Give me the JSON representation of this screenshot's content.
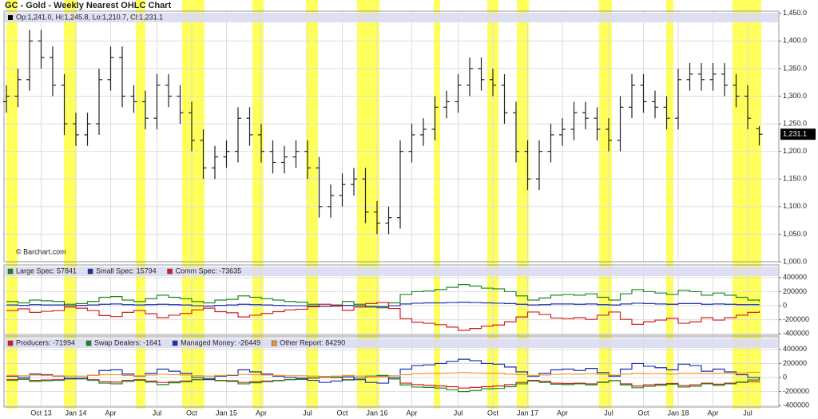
{
  "chart_data": [
    {
      "type": "ohlc",
      "title": "GC - Gold - Weekly Nearest OHLC Chart",
      "legend_text": "Op:1,241.0, Hi:1,245.8, Lo:1,210.7, Cl:1,231.1",
      "last_label": "1,231.1",
      "source": "© Barchart.com",
      "color": "#222222",
      "open": [
        1290,
        1300,
        1330,
        1400,
        1370,
        1320,
        1250,
        1230,
        1250,
        1330,
        1370,
        1300,
        1290,
        1260,
        1320,
        1300,
        1270,
        1220,
        1170,
        1190,
        1200,
        1260,
        1230,
        1200,
        1180,
        1190,
        1200,
        1170,
        1100,
        1120,
        1140,
        1150,
        1090,
        1070,
        1080,
        1200,
        1230,
        1240,
        1280,
        1290,
        1320,
        1350,
        1330,
        1320,
        1270,
        1200,
        1150,
        1200,
        1230,
        1240,
        1270,
        1260,
        1240,
        1220,
        1280,
        1320,
        1290,
        1280,
        1260,
        1330,
        1340,
        1330,
        1340,
        1320,
        1300,
        1241.0
      ],
      "high": [
        1320,
        1350,
        1420,
        1420,
        1390,
        1340,
        1270,
        1270,
        1350,
        1390,
        1390,
        1320,
        1310,
        1340,
        1340,
        1320,
        1290,
        1240,
        1210,
        1220,
        1280,
        1280,
        1250,
        1220,
        1210,
        1220,
        1220,
        1190,
        1140,
        1160,
        1170,
        1170,
        1110,
        1100,
        1220,
        1250,
        1260,
        1300,
        1310,
        1340,
        1370,
        1370,
        1350,
        1340,
        1290,
        1220,
        1220,
        1250,
        1260,
        1290,
        1290,
        1280,
        1260,
        1300,
        1340,
        1340,
        1310,
        1300,
        1350,
        1360,
        1360,
        1360,
        1360,
        1340,
        1320,
        1245.8
      ],
      "low": [
        1270,
        1280,
        1310,
        1350,
        1300,
        1230,
        1210,
        1210,
        1230,
        1310,
        1280,
        1270,
        1240,
        1240,
        1280,
        1250,
        1200,
        1150,
        1150,
        1170,
        1180,
        1210,
        1180,
        1160,
        1160,
        1170,
        1150,
        1080,
        1080,
        1100,
        1120,
        1070,
        1050,
        1050,
        1060,
        1180,
        1210,
        1220,
        1260,
        1270,
        1300,
        1310,
        1300,
        1250,
        1180,
        1130,
        1130,
        1180,
        1210,
        1220,
        1240,
        1220,
        1200,
        1200,
        1260,
        1270,
        1260,
        1240,
        1240,
        1310,
        1310,
        1310,
        1300,
        1280,
        1240,
        1210.7
      ],
      "close": [
        1300,
        1330,
        1400,
        1370,
        1320,
        1250,
        1230,
        1250,
        1330,
        1370,
        1300,
        1290,
        1260,
        1320,
        1300,
        1270,
        1220,
        1170,
        1190,
        1200,
        1260,
        1230,
        1200,
        1180,
        1190,
        1200,
        1170,
        1100,
        1120,
        1140,
        1150,
        1090,
        1070,
        1080,
        1200,
        1230,
        1240,
        1280,
        1290,
        1320,
        1350,
        1330,
        1320,
        1270,
        1200,
        1150,
        1200,
        1230,
        1240,
        1270,
        1260,
        1240,
        1220,
        1280,
        1320,
        1290,
        1280,
        1260,
        1330,
        1340,
        1330,
        1340,
        1320,
        1300,
        1260,
        1231.1
      ],
      "ylim": [
        1000,
        1454
      ],
      "grid": true,
      "yticks": [
        {
          "value": 1450,
          "label": "1,450.0"
        },
        {
          "value": 1400,
          "label": "1,400.0"
        },
        {
          "value": 1350,
          "label": "1,350.0"
        },
        {
          "value": 1300,
          "label": "1,300.0"
        },
        {
          "value": 1250,
          "label": "1,250.0"
        },
        {
          "value": 1200,
          "label": "1,200.0"
        },
        {
          "value": 1150,
          "label": "1,150.0"
        },
        {
          "value": 1100,
          "label": "1,100.0"
        },
        {
          "value": 1050,
          "label": "1,050.0"
        },
        {
          "value": 1000,
          "label": "1,000.0"
        }
      ]
    },
    {
      "type": "line",
      "ylim": [
        -420000,
        580000
      ],
      "yticks": [
        400000,
        200000,
        0,
        -200000,
        -400000
      ],
      "grid": true,
      "series": [
        {
          "name": "Large Spec: 57841",
          "color": "#1e8a1e",
          "values": [
            60000,
            40000,
            80000,
            70000,
            60000,
            20000,
            30000,
            60000,
            120000,
            130000,
            80000,
            60000,
            100000,
            150000,
            120000,
            100000,
            60000,
            40000,
            80000,
            90000,
            140000,
            120000,
            100000,
            80000,
            60000,
            50000,
            20000,
            -10000,
            10000,
            60000,
            20000,
            -20000,
            -30000,
            40000,
            160000,
            200000,
            210000,
            230000,
            260000,
            300000,
            280000,
            250000,
            240000,
            200000,
            140000,
            80000,
            110000,
            150000,
            160000,
            150000,
            170000,
            120000,
            80000,
            170000,
            230000,
            200000,
            180000,
            160000,
            220000,
            200000,
            150000,
            180000,
            150000,
            120000,
            80000,
            57841
          ]
        },
        {
          "name": "Small Spec: 15794",
          "color": "#1f2fb0",
          "values": [
            10000,
            5000,
            15000,
            10000,
            10000,
            0,
            5000,
            10000,
            20000,
            25000,
            15000,
            10000,
            15000,
            20000,
            15000,
            10000,
            0,
            -5000,
            5000,
            10000,
            20000,
            15000,
            10000,
            5000,
            0,
            0,
            -5000,
            -10000,
            -5000,
            5000,
            0,
            -10000,
            -15000,
            0,
            25000,
            35000,
            40000,
            40000,
            45000,
            50000,
            45000,
            40000,
            35000,
            30000,
            20000,
            10000,
            15000,
            25000,
            25000,
            20000,
            25000,
            15000,
            10000,
            25000,
            35000,
            30000,
            25000,
            20000,
            30000,
            30000,
            20000,
            25000,
            20000,
            15000,
            15000,
            15794
          ]
        },
        {
          "name": "Comm Spec: -73635",
          "color": "#d42020",
          "values": [
            -70000,
            -45000,
            -95000,
            -80000,
            -70000,
            -20000,
            -35000,
            -70000,
            -140000,
            -155000,
            -95000,
            -70000,
            -115000,
            -170000,
            -135000,
            -110000,
            -60000,
            -35000,
            -85000,
            -100000,
            -160000,
            -135000,
            -110000,
            -85000,
            -60000,
            -50000,
            -15000,
            20000,
            5000,
            -65000,
            -20000,
            30000,
            45000,
            -40000,
            -185000,
            -235000,
            -250000,
            -270000,
            -305000,
            -350000,
            -325000,
            -290000,
            -275000,
            -230000,
            -160000,
            -90000,
            -125000,
            -175000,
            -185000,
            -170000,
            -195000,
            -135000,
            -90000,
            -195000,
            -265000,
            -230000,
            -205000,
            -180000,
            -250000,
            -230000,
            -170000,
            -205000,
            -170000,
            -135000,
            -95000,
            -73635
          ]
        }
      ]
    },
    {
      "type": "line",
      "ylim": [
        -420000,
        580000
      ],
      "yticks": [
        400000,
        200000,
        0,
        -200000,
        -400000
      ],
      "grid": true,
      "categories": [
        null,
        null,
        null,
        "Oct 13",
        null,
        null,
        "Jan 14",
        null,
        null,
        "Apr",
        null,
        null,
        null,
        "Jul",
        null,
        null,
        "Oct",
        null,
        null,
        "Jan 15",
        null,
        null,
        "Apr",
        null,
        null,
        null,
        "Jul",
        null,
        null,
        "Oct",
        null,
        null,
        "Jan 16",
        null,
        null,
        "Apr",
        null,
        null,
        null,
        "Jul",
        null,
        null,
        "Oct",
        null,
        null,
        "Jan 17",
        null,
        null,
        "Apr",
        null,
        null,
        null,
        "Jul",
        null,
        null,
        "Oct",
        null,
        null,
        "Jan 18",
        null,
        null,
        "Apr",
        null,
        null,
        "Jul",
        null
      ],
      "series": [
        {
          "name": "Producers: -71994",
          "color": "#d42020",
          "values": [
            -30000,
            -20000,
            -40000,
            -35000,
            -30000,
            -10000,
            -15000,
            -30000,
            -60000,
            -65000,
            -40000,
            -30000,
            -50000,
            -70000,
            -60000,
            -50000,
            -30000,
            -20000,
            -40000,
            -45000,
            -70000,
            -60000,
            -50000,
            -40000,
            -30000,
            -25000,
            -10000,
            5000,
            0,
            -30000,
            -10000,
            10000,
            15000,
            -20000,
            -80000,
            -100000,
            -110000,
            -120000,
            -130000,
            -150000,
            -140000,
            -130000,
            -120000,
            -100000,
            -70000,
            -40000,
            -55000,
            -80000,
            -85000,
            -80000,
            -90000,
            -65000,
            -45000,
            -90000,
            -120000,
            -105000,
            -95000,
            -85000,
            -115000,
            -105000,
            -80000,
            -95000,
            -80000,
            -70000,
            -60000,
            -71994
          ]
        },
        {
          "name": "Swap Dealers: -1641",
          "color": "#1e8a1e",
          "values": [
            -40000,
            -25000,
            -55000,
            -45000,
            -40000,
            -10000,
            -20000,
            -40000,
            -80000,
            -90000,
            -55000,
            -40000,
            -65000,
            -100000,
            -75000,
            -60000,
            -30000,
            -15000,
            -45000,
            -55000,
            -90000,
            -75000,
            -60000,
            -45000,
            -30000,
            -25000,
            -5000,
            15000,
            5000,
            -35000,
            -10000,
            20000,
            30000,
            -20000,
            -105000,
            -135000,
            -140000,
            -150000,
            -175000,
            -200000,
            -185000,
            -160000,
            -155000,
            -130000,
            -90000,
            -50000,
            -70000,
            -95000,
            -100000,
            -90000,
            -105000,
            -70000,
            -45000,
            -105000,
            -145000,
            -125000,
            -110000,
            -95000,
            -135000,
            -125000,
            -90000,
            -110000,
            -90000,
            -65000,
            -35000,
            -1641
          ]
        },
        {
          "name": "Managed Money: -26449",
          "color": "#1f2fb0",
          "values": [
            20000,
            0,
            50000,
            40000,
            20000,
            -20000,
            -10000,
            30000,
            100000,
            110000,
            50000,
            20000,
            60000,
            120000,
            90000,
            60000,
            0,
            -30000,
            20000,
            30000,
            110000,
            80000,
            50000,
            20000,
            0,
            -10000,
            -40000,
            -70000,
            -50000,
            10000,
            -30000,
            -70000,
            -80000,
            0,
            120000,
            170000,
            180000,
            200000,
            230000,
            260000,
            240000,
            200000,
            190000,
            150000,
            80000,
            20000,
            60000,
            110000,
            120000,
            100000,
            130000,
            70000,
            20000,
            120000,
            200000,
            160000,
            140000,
            110000,
            190000,
            170000,
            90000,
            120000,
            80000,
            40000,
            0,
            -26449
          ]
        },
        {
          "name": "Other Report: 84290",
          "color": "#f0962a",
          "values": [
            30000,
            25000,
            35000,
            30000,
            25000,
            20000,
            20000,
            30000,
            40000,
            40000,
            30000,
            25000,
            35000,
            45000,
            40000,
            35000,
            25000,
            20000,
            30000,
            35000,
            45000,
            40000,
            35000,
            30000,
            25000,
            25000,
            20000,
            15000,
            20000,
            30000,
            20000,
            15000,
            10000,
            25000,
            40000,
            55000,
            60000,
            60000,
            65000,
            70000,
            65000,
            60000,
            60000,
            50000,
            40000,
            30000,
            35000,
            45000,
            50000,
            50000,
            55000,
            45000,
            35000,
            50000,
            60000,
            55000,
            55000,
            50000,
            60000,
            60000,
            55000,
            60000,
            60000,
            65000,
            75000,
            84290
          ]
        }
      ]
    }
  ]
}
